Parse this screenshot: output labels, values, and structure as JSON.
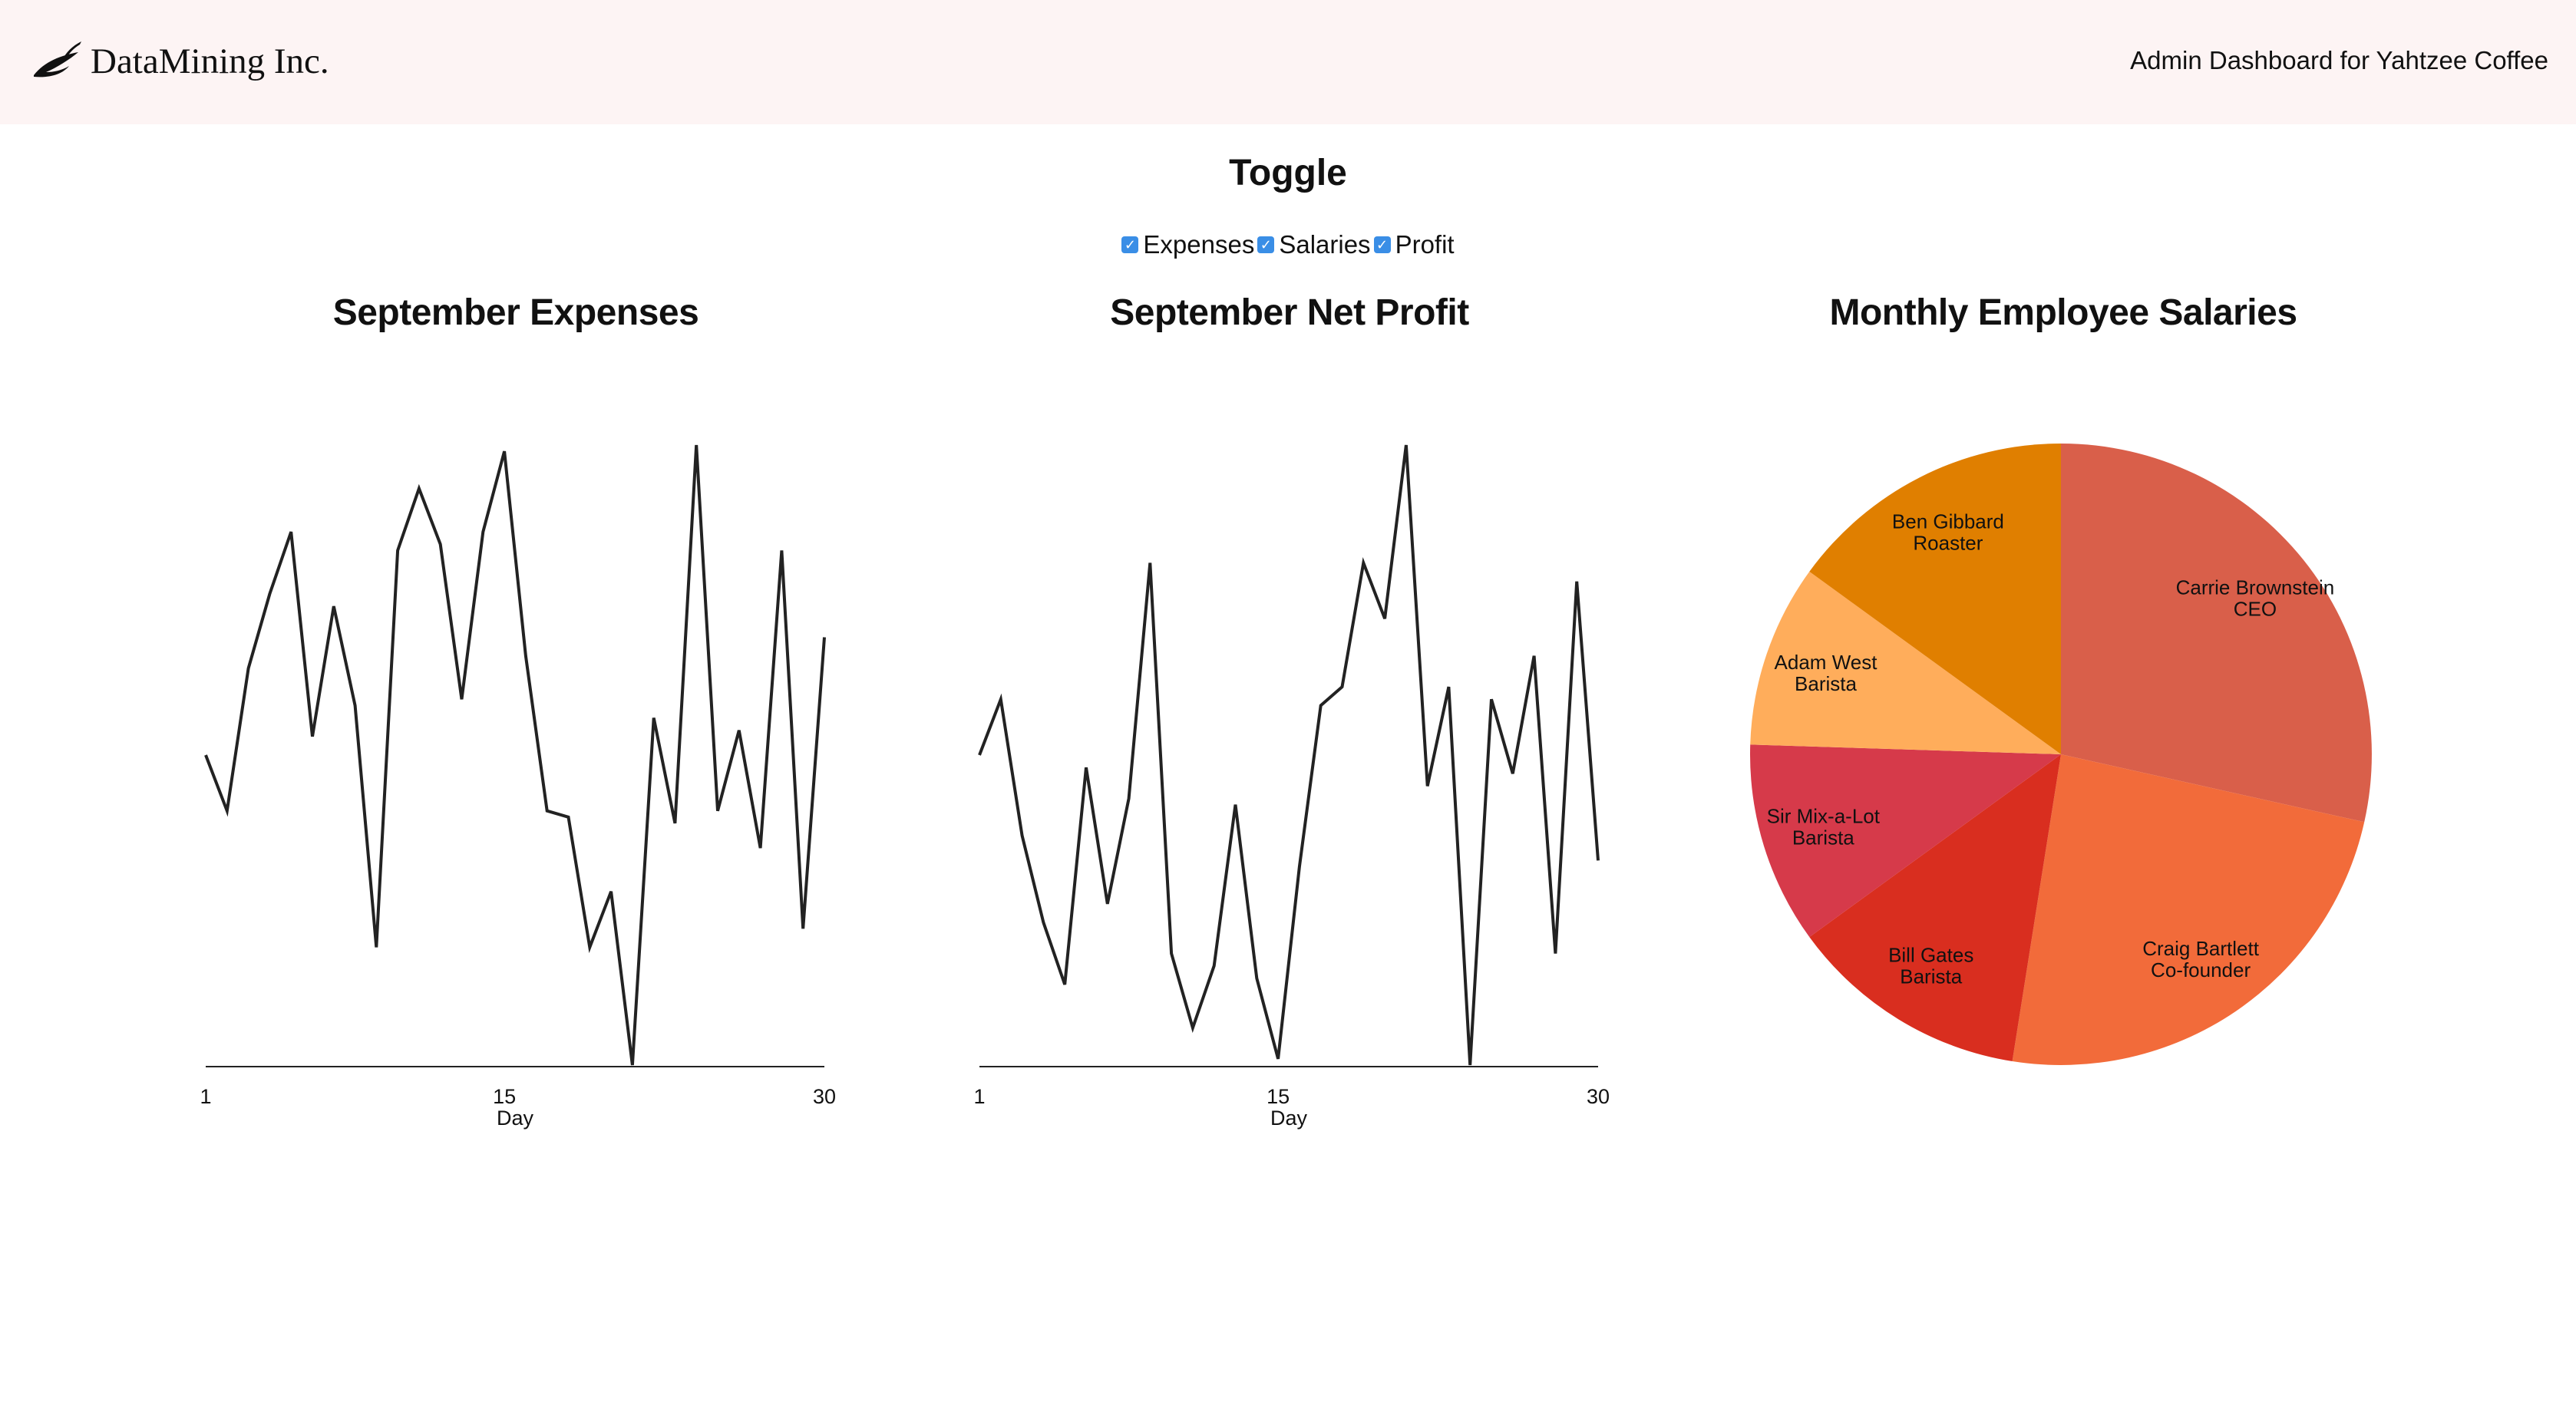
{
  "header": {
    "brand": "DataMining Inc.",
    "brand_icon": "leaf-icon",
    "subtitle": "Admin Dashboard for Yahtzee Coffee",
    "background": "#fdf4f4"
  },
  "toggle": {
    "title": "Toggle",
    "checkbox_color": "#3a8ee6",
    "items": [
      {
        "label": "Expenses",
        "checked": true
      },
      {
        "label": "Salaries",
        "checked": true
      },
      {
        "label": "Profit",
        "checked": true
      }
    ]
  },
  "chart_data": [
    {
      "type": "line",
      "title": "September Expenses",
      "xlabel": "Day",
      "ylabel": "",
      "xticks": [
        "1",
        "15",
        "30"
      ],
      "x": [
        1,
        2,
        3,
        4,
        5,
        6,
        7,
        8,
        9,
        10,
        11,
        12,
        13,
        14,
        15,
        16,
        17,
        18,
        19,
        20,
        21,
        22,
        23,
        24,
        25,
        26,
        27,
        28,
        29,
        30
      ],
      "values": [
        50,
        41,
        64,
        76,
        86,
        53,
        74,
        58,
        19,
        83,
        93,
        84,
        59,
        86,
        99,
        66,
        41,
        40,
        19,
        28,
        0,
        56,
        39,
        100,
        41,
        54,
        35,
        83,
        22,
        69
      ],
      "ylim": [
        0,
        100
      ],
      "grid": false,
      "line_color": "#222222"
    },
    {
      "type": "line",
      "title": "September Net Profit",
      "xlabel": "Day",
      "ylabel": "",
      "xticks": [
        "1",
        "15",
        "30"
      ],
      "x": [
        1,
        2,
        3,
        4,
        5,
        6,
        7,
        8,
        9,
        10,
        11,
        12,
        13,
        14,
        15,
        16,
        17,
        18,
        19,
        20,
        21,
        22,
        23,
        24,
        25,
        26,
        27,
        28,
        29,
        30
      ],
      "values": [
        50,
        59,
        37,
        23,
        13,
        48,
        26,
        43,
        81,
        18,
        6,
        16,
        42,
        14,
        1,
        32,
        58,
        61,
        81,
        72,
        100,
        45,
        61,
        0,
        59,
        47,
        66,
        18,
        78,
        33
      ],
      "ylim": [
        0,
        100
      ],
      "grid": false,
      "line_color": "#222222"
    },
    {
      "type": "pie",
      "title": "Monthly Employee Salaries",
      "series": [
        {
          "name": "Carrie Brownstein",
          "role": "CEO",
          "value": 28.5,
          "color": "#d95f4a"
        },
        {
          "name": "Craig Bartlett",
          "role": "Co-founder",
          "value": 24.0,
          "color": "#f26b3a"
        },
        {
          "name": "Bill Gates",
          "role": "Barista",
          "value": 12.5,
          "color": "#d92e1f"
        },
        {
          "name": "Sir Mix-a-Lot",
          "role": "Barista",
          "value": 10.5,
          "color": "#d63a4a"
        },
        {
          "name": "Adam West",
          "role": "Barista",
          "value": 9.5,
          "color": "#ffad5b"
        },
        {
          "name": "Ben Gibbard",
          "role": "Roaster",
          "value": 15.0,
          "color": "#e07f00"
        }
      ]
    }
  ]
}
